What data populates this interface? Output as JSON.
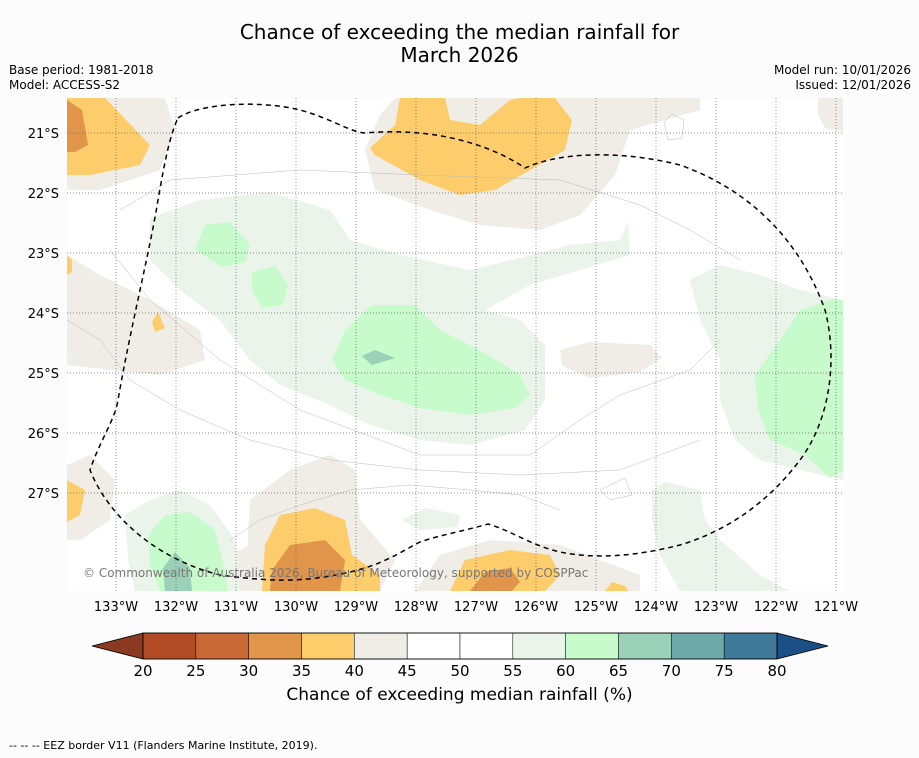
{
  "header": {
    "title_line1": "Chance of exceeding the median rainfall for",
    "title_line2": "March 2026",
    "base_period": "Base period: 1981-2018",
    "model": "Model: ACCESS-S2",
    "model_run": "Model run: 10/01/2026",
    "issued": "Issued: 12/01/2026"
  },
  "map": {
    "lat_labels": [
      "21°S",
      "22°S",
      "23°S",
      "24°S",
      "25°S",
      "26°S",
      "27°S"
    ],
    "lon_labels": [
      "133°W",
      "132°W",
      "131°W",
      "130°W",
      "129°W",
      "128°W",
      "127°W",
      "126°W",
      "125°W",
      "124°W",
      "123°W",
      "122°W",
      "121°W"
    ],
    "credit": "© Commonwealth of Australia 2026, Bureau of Meteorology, supported by COSPPac"
  },
  "colorbar": {
    "ticks": [
      "20",
      "25",
      "30",
      "35",
      "40",
      "45",
      "50",
      "55",
      "60",
      "65",
      "70",
      "75",
      "80"
    ],
    "colors": [
      "#b24c27",
      "#c96a36",
      "#e0954a",
      "#fecd6b",
      "#f0ece6",
      "#ffffff",
      "#ffffff",
      "#eaf4ea",
      "#c8fbcb",
      "#9ad1b8",
      "#6fa8a8",
      "#3f7a99"
    ],
    "under_color": "#8a3a20",
    "over_color": "#1c4f86",
    "title": "Chance of exceeding median rainfall (%)"
  },
  "footer": {
    "legend": "--  --  -- EEZ border V11 (Flanders Marine Institute, 2019)."
  }
}
